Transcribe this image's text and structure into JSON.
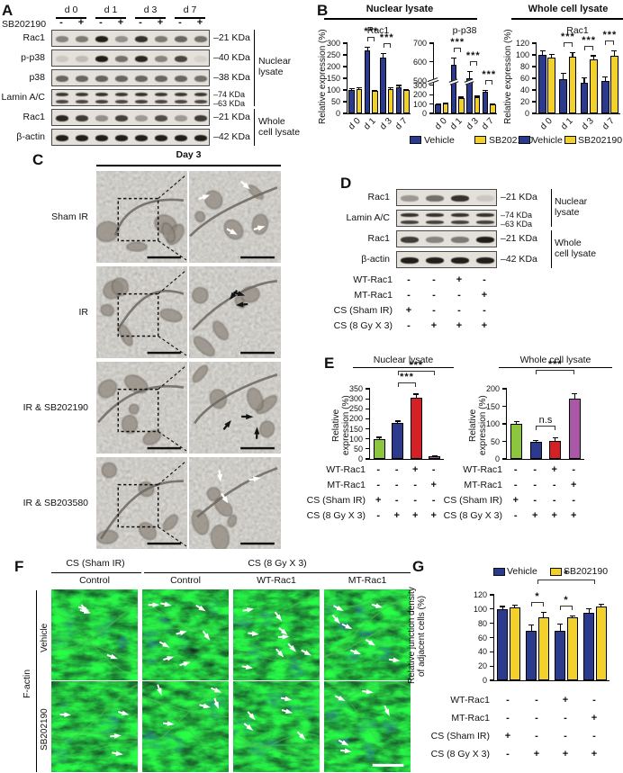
{
  "letters": {
    "A": "A",
    "B": "B",
    "C": "C",
    "D": "D",
    "E": "E",
    "F": "F",
    "G": "G"
  },
  "colors": {
    "vehicle": "#2c3a8e",
    "sb": "#f2d12b",
    "green": "#8cc63e",
    "blue": "#2c3a8e",
    "red": "#d42128",
    "purple": "#ab57a7"
  },
  "legend": {
    "vehicle": "Vehicle",
    "sb": "SB202190"
  },
  "conditions": {
    "labels": [
      "WT-Rac1",
      "MT-Rac1",
      "CS (Sham IR)",
      "CS (8 Gy X 3)"
    ],
    "signs": [
      [
        "-",
        "-",
        "+",
        "-"
      ],
      [
        "-",
        "-",
        "-",
        "+"
      ],
      [
        "+",
        "-",
        "-",
        "-"
      ],
      [
        "-",
        "+",
        "+",
        "+"
      ]
    ]
  },
  "panelA": {
    "day_headers": [
      "d 0",
      "d 1",
      "d 3",
      "d 7"
    ],
    "treatment_label": "SB202190",
    "treatment_signs": [
      "-",
      "+",
      "-",
      "+",
      "-",
      "+",
      "-",
      "+"
    ],
    "blots": [
      {
        "label": "Rac1",
        "kda": [
          "–21 KDa"
        ],
        "bands": [
          0.45,
          0.5,
          0.95,
          0.4,
          0.85,
          0.5,
          0.6,
          0.55
        ]
      },
      {
        "label": "p-p38",
        "kda": [
          "–40 KDa"
        ],
        "bands": [
          0.12,
          0.18,
          0.95,
          0.55,
          0.9,
          0.45,
          0.75,
          0.08
        ]
      },
      {
        "label": "p38",
        "kda": [
          "–38 KDa"
        ],
        "bands": [
          0.6,
          0.6,
          0.62,
          0.6,
          0.6,
          0.6,
          0.6,
          0.55
        ]
      },
      {
        "label": "Lamin A/C",
        "kda": [
          "–74 KDa",
          "–63 KDa"
        ],
        "doublet": true,
        "bands": [
          0.82,
          0.82,
          0.85,
          0.82,
          0.85,
          0.82,
          0.82,
          0.82
        ]
      },
      {
        "label": "Rac1",
        "kda": [
          "–21 KDa"
        ],
        "bands": [
          0.9,
          0.8,
          0.4,
          0.78,
          0.35,
          0.72,
          0.35,
          0.8
        ]
      },
      {
        "label": "β-actin",
        "kda": [
          "–42 KDa"
        ],
        "bands": [
          0.95,
          0.95,
          0.95,
          0.95,
          0.95,
          0.95,
          0.95,
          0.95
        ]
      }
    ],
    "group_nuclear": [
      "Nuclear",
      "lysate"
    ],
    "group_whole": [
      "Whole",
      "cell lysate"
    ]
  },
  "panelB": {
    "header_nuclear": "Nuclear lysate",
    "header_whole": "Whole cell lysate"
  },
  "panelC": {
    "title": "Day 3",
    "rows": [
      {
        "label": "Sham IR",
        "arrows": 4,
        "arrow_color": "white"
      },
      {
        "label": "IR",
        "arrows": 3,
        "arrow_color": "black"
      },
      {
        "label": "IR & SB202190",
        "arrows": 3,
        "arrow_color": "black"
      },
      {
        "label": "IR & SB203580",
        "arrows": 3,
        "arrow_color": "white"
      }
    ]
  },
  "panelD": {
    "blots": [
      {
        "label": "Rac1",
        "kda": [
          "–21 KDa"
        ],
        "bands": [
          0.35,
          0.55,
          0.85,
          0.12
        ]
      },
      {
        "label": "Lamin A/C",
        "kda": [
          "–74 KDa",
          "–63 KDa"
        ],
        "doublet": true,
        "bands": [
          0.85,
          0.85,
          0.85,
          0.85
        ]
      },
      {
        "label": "Rac1",
        "kda": [
          "–21 KDa"
        ],
        "bands": [
          0.8,
          0.45,
          0.5,
          0.95
        ]
      },
      {
        "label": "β-actin",
        "kda": [
          "–42 KDa"
        ],
        "bands": [
          0.95,
          0.95,
          0.95,
          0.95
        ]
      }
    ],
    "group_nuclear": [
      "Nuclear",
      "lysate"
    ],
    "group_whole": [
      "Whole",
      "cell lysate"
    ]
  },
  "panelF": {
    "group1": "CS (Sham IR)",
    "group2": "CS (8 Gy X 3)",
    "cols": [
      "Control",
      "Control",
      "WT-Rac1",
      "MT-Rac1"
    ],
    "side": "F-actin",
    "rows": [
      "Vehicle",
      "SB202190"
    ],
    "arrow_counts": [
      [
        4,
        8,
        9,
        7
      ],
      [
        4,
        5,
        5,
        5
      ]
    ]
  },
  "chart_data": [
    {
      "id": "nuclear-rac1",
      "type": "bar",
      "title": "Rac1",
      "ylabel": "Relative expression (%)",
      "categories": [
        "d 0",
        "d 1",
        "d 3",
        "d 7"
      ],
      "ticks": [
        0,
        50,
        100,
        150,
        200,
        250,
        300
      ],
      "ylim": [
        0,
        300
      ],
      "series": [
        {
          "name": "Vehicle",
          "color": "vehicle",
          "values": [
            100,
            268,
            238,
            113
          ],
          "errors": [
            8,
            15,
            18,
            8
          ]
        },
        {
          "name": "SB202190",
          "color": "sb",
          "values": [
            103,
            95,
            105,
            100
          ],
          "errors": [
            8,
            5,
            6,
            5
          ]
        }
      ],
      "sig": [
        {
          "type": "pair",
          "group": 1,
          "label": "***"
        },
        {
          "type": "pair",
          "group": 2,
          "label": "***"
        }
      ]
    },
    {
      "id": "nuclear-pp38",
      "type": "bar",
      "title": "p-p38",
      "categories": [
        "d 0",
        "d 1",
        "d 3",
        "d 7"
      ],
      "ticks": [
        0,
        100,
        200,
        300,
        500,
        600,
        700
      ],
      "ylim": [
        0,
        700
      ],
      "axis_break": {
        "low": 300,
        "high": 500
      },
      "series": [
        {
          "name": "Vehicle",
          "color": "vehicle",
          "values": [
            100,
            585,
            515,
            230
          ],
          "errors": [
            8,
            40,
            35,
            18
          ]
        },
        {
          "name": "SB202190",
          "color": "sb",
          "values": [
            105,
            165,
            175,
            95
          ],
          "errors": [
            8,
            12,
            12,
            10
          ]
        }
      ],
      "sig": [
        {
          "type": "pair",
          "group": 1,
          "label": "***"
        },
        {
          "type": "pair",
          "group": 2,
          "label": "***"
        },
        {
          "type": "pair",
          "group": 3,
          "label": "***"
        }
      ]
    },
    {
      "id": "whole-rac1",
      "type": "bar",
      "title": "Rac1",
      "ylabel": "Relative expression (%)",
      "categories": [
        "d 0",
        "d 1",
        "d 3",
        "d 7"
      ],
      "ticks": [
        0,
        20,
        40,
        60,
        80,
        100,
        120
      ],
      "ylim": [
        0,
        120
      ],
      "series": [
        {
          "name": "Vehicle",
          "color": "vehicle",
          "values": [
            100,
            59,
            53,
            56
          ],
          "errors": [
            7,
            10,
            9,
            7
          ]
        },
        {
          "name": "SB202190",
          "color": "sb",
          "values": [
            95,
            97,
            92,
            99
          ],
          "errors": [
            7,
            8,
            7,
            8
          ]
        }
      ],
      "sig": [
        {
          "type": "pair",
          "group": 1,
          "label": "***"
        },
        {
          "type": "pair",
          "group": 2,
          "label": "***"
        },
        {
          "type": "pair",
          "group": 3,
          "label": "***"
        }
      ]
    },
    {
      "id": "e-nuclear",
      "type": "bar",
      "title": "Nuclear lysate",
      "ylabel_lines": [
        "Relative",
        "expression (%)"
      ],
      "ticks": [
        0,
        50,
        100,
        150,
        200,
        250,
        300,
        350
      ],
      "ylim": [
        0,
        350
      ],
      "values": [
        100,
        178,
        307,
        12
      ],
      "errors": [
        10,
        12,
        18,
        4
      ],
      "colors": [
        "green",
        "blue",
        "red",
        "purple"
      ],
      "sig": [
        {
          "type": "span",
          "from": 1,
          "to": 2,
          "label": "***",
          "lvl": 0
        },
        {
          "type": "span",
          "from": 1,
          "to": 3,
          "label": "***",
          "lvl": 1
        }
      ]
    },
    {
      "id": "e-whole",
      "type": "bar",
      "title": "Whole cell lysate",
      "ylabel_lines": [
        "Relative",
        "expression (%)"
      ],
      "ticks": [
        0,
        50,
        100,
        150,
        200
      ],
      "ylim": [
        0,
        200
      ],
      "values": [
        100,
        48,
        51,
        172
      ],
      "errors": [
        7,
        5,
        10,
        14
      ],
      "colors": [
        "green",
        "blue",
        "red",
        "purple"
      ],
      "sig": [
        {
          "type": "span",
          "from": 1,
          "to": 2,
          "label": "n.s",
          "lvl": 0
        },
        {
          "type": "span",
          "from": 1,
          "to": 3,
          "label": "***",
          "lvl": 1
        }
      ]
    },
    {
      "id": "junction-density",
      "type": "bar",
      "ylabel_lines": [
        "Relative junction density",
        "of adjacent cells (%)"
      ],
      "ticks": [
        0,
        20,
        40,
        60,
        80,
        100,
        120
      ],
      "ylim": [
        0,
        120
      ],
      "series": [
        {
          "name": "Vehicle",
          "color": "vehicle",
          "values": [
            100,
            70,
            69,
            95
          ],
          "errors": [
            4,
            8,
            10,
            6
          ]
        },
        {
          "name": "SB202190",
          "color": "sb",
          "values": [
            102,
            88,
            88,
            103
          ],
          "errors": [
            4,
            8,
            3,
            4
          ]
        }
      ],
      "sig": [
        {
          "type": "pair",
          "group": 1,
          "label": "*"
        },
        {
          "type": "pair",
          "group": 2,
          "label": "*"
        },
        {
          "type": "gspan",
          "from": 1,
          "to": 3,
          "label": "*",
          "lvl": 1
        }
      ]
    }
  ]
}
